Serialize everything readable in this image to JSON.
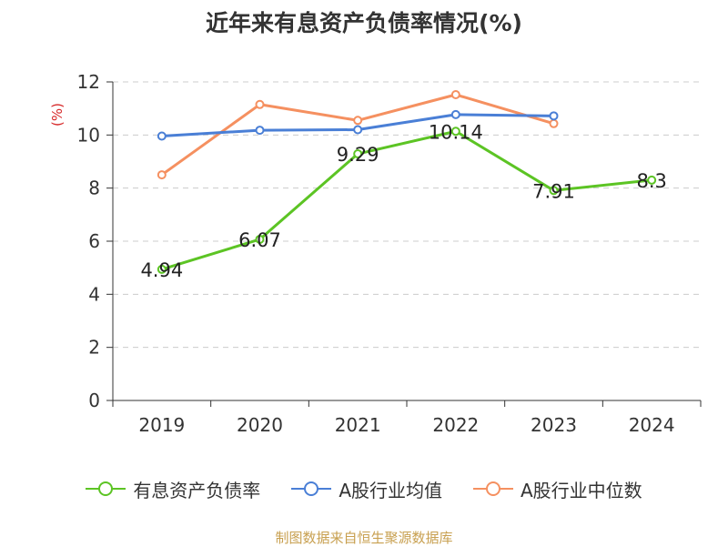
{
  "title": "近年来有息资产负债率情况(%)",
  "source": "制图数据来自恒生聚源数据库",
  "colors": {
    "series": [
      "#5cc424",
      "#4a7fd6",
      "#f59060"
    ],
    "grid": "#cccccc",
    "axis": "#333333",
    "unit": "#d62728",
    "source": "#c8a050"
  },
  "chart_data": {
    "type": "line",
    "title": "近年来有息资产负债率情况(%)",
    "ylabel": "(%)",
    "xlabel": "",
    "x": [
      "2019",
      "2020",
      "2021",
      "2022",
      "2023",
      "2024"
    ],
    "ylim": [
      0,
      12
    ],
    "yticks": [
      0,
      2,
      4,
      6,
      8,
      10,
      12
    ],
    "grid": true,
    "legend": "bottom",
    "series": [
      {
        "name": "有息资产负债率",
        "values": [
          4.94,
          6.07,
          9.29,
          10.14,
          7.91,
          8.3
        ],
        "labels": [
          "4.94",
          "6.07",
          "9.29",
          "10.14",
          "7.91",
          "8.3"
        ],
        "color": "#5cc424"
      },
      {
        "name": "A股行业均值",
        "values": [
          9.96,
          10.18,
          10.2,
          10.77,
          10.72,
          null
        ],
        "color": "#4a7fd6"
      },
      {
        "name": "A股行业中位数",
        "values": [
          8.5,
          11.15,
          10.55,
          11.52,
          10.43,
          null
        ],
        "color": "#f59060"
      }
    ]
  }
}
